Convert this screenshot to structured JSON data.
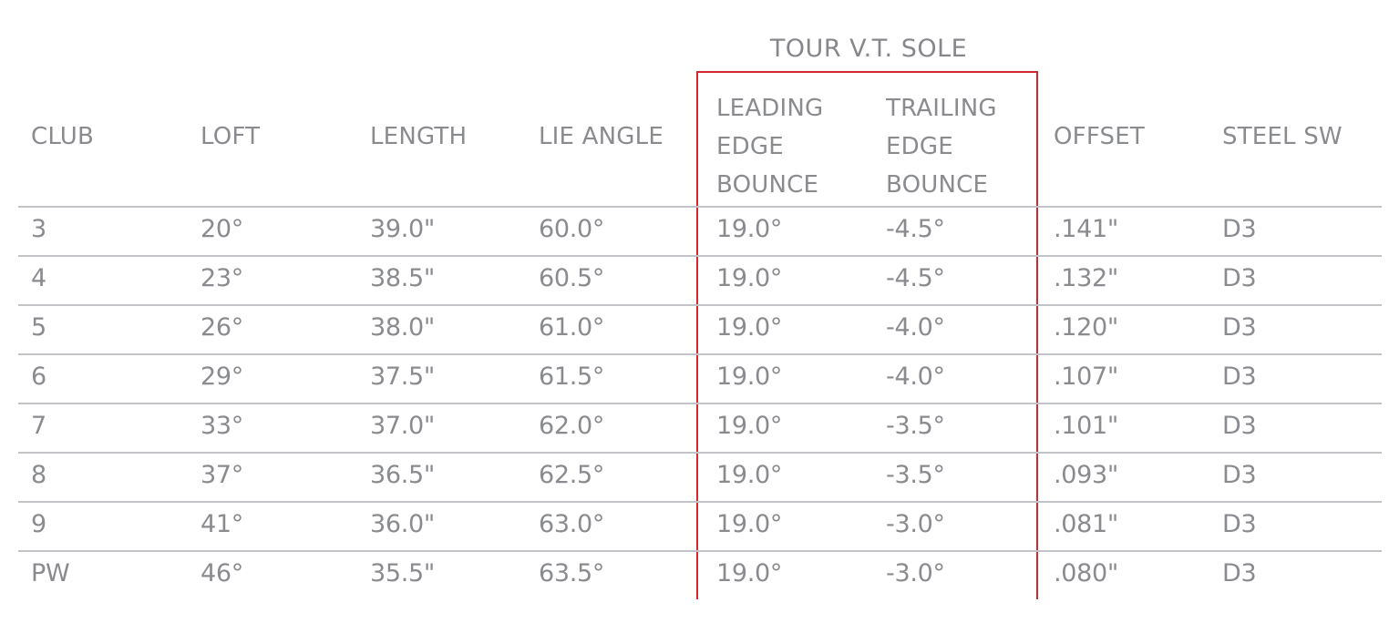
{
  "table": {
    "group_header": "TOUR V.T. SOLE",
    "columns": {
      "club": "CLUB",
      "loft": "LOFT",
      "length": "LENGTH",
      "lie_angle": "LIE ANGLE",
      "leading_edge_bounce": [
        "LEADING",
        "EDGE",
        "BOUNCE"
      ],
      "trailing_edge_bounce": [
        "TRAILING",
        "EDGE",
        "BOUNCE"
      ],
      "offset": "OFFSET",
      "steel_sw": "STEEL SW"
    },
    "rows": [
      [
        "3",
        "20°",
        "39.0\"",
        "60.0°",
        "19.0°",
        "-4.5°",
        ".141\"",
        "D3"
      ],
      [
        "4",
        "23°",
        "38.5\"",
        "60.5°",
        "19.0°",
        "-4.5°",
        ".132\"",
        "D3"
      ],
      [
        "5",
        "26°",
        "38.0\"",
        "61.0°",
        "19.0°",
        "-4.0°",
        ".120\"",
        "D3"
      ],
      [
        "6",
        "29°",
        "37.5\"",
        "61.5°",
        "19.0°",
        "-4.0°",
        ".107\"",
        "D3"
      ],
      [
        "7",
        "33°",
        "37.0\"",
        "62.0°",
        "19.0°",
        "-3.5°",
        ".101\"",
        "D3"
      ],
      [
        "8",
        "37°",
        "36.5\"",
        "62.5°",
        "19.0°",
        "-3.5°",
        ".093\"",
        "D3"
      ],
      [
        "9",
        "41°",
        "36.0\"",
        "63.0°",
        "19.0°",
        "-3.0°",
        ".081\"",
        "D3"
      ],
      [
        "PW",
        "46°",
        "35.5\"",
        "63.5°",
        "19.0°",
        "-3.0°",
        ".080\"",
        "D3"
      ]
    ]
  },
  "colors": {
    "text": "#8a8b8f",
    "rule": "#c3c4c7",
    "highlight_border": "#d0282e"
  }
}
